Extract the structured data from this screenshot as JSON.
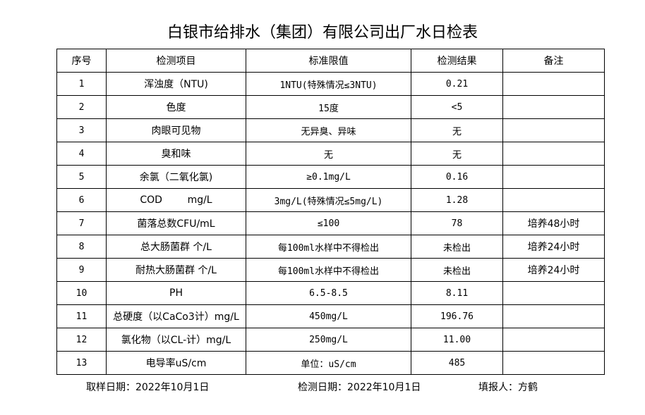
{
  "title": "白银市给排水（集团）有限公司出厂水日检表",
  "headers": [
    "序号",
    "检测项目",
    "标准限值",
    "检测结果",
    "备注"
  ],
  "rows": [
    [
      "1",
      "浑浊度（NTU)",
      "1NTU(特殊情况≤3NTU)",
      "0.21",
      ""
    ],
    [
      "2",
      "色度",
      "15度",
      "<5",
      ""
    ],
    [
      "3",
      "肉眼可见物",
      "无异臭、异味",
      "无",
      ""
    ],
    [
      "4",
      "臭和味",
      "无",
      "无",
      ""
    ],
    [
      "5",
      "余氯（二氧化氯)",
      "≥0.1mg/L",
      "0.16",
      ""
    ],
    [
      "6",
      "COD        mg/L",
      "3mg/L(特殊情况≤5mg/L)",
      "1.28",
      ""
    ],
    [
      "7",
      "菌落总数CFU/mL",
      "≤100",
      "78",
      "培养48小时"
    ],
    [
      "8",
      "总大肠菌群 个/L",
      "每100ml水样中不得检出",
      "未检出",
      "培养24小时"
    ],
    [
      "9",
      "耐热大肠菌群 个/L",
      "每100ml水样中不得检出",
      "未检出",
      "培养24小时"
    ],
    [
      "10",
      "PH",
      "6.5-8.5",
      "8.11",
      ""
    ],
    [
      "11",
      "总硬度（以CaCo3计）mg/L",
      "450mg/L",
      "196.76",
      ""
    ],
    [
      "12",
      "氯化物（以CL-计）mg/L",
      "250mg/L",
      "11.00",
      ""
    ],
    [
      "13",
      "电导率uS/cm",
      "单位：uS/cm",
      "485",
      ""
    ]
  ],
  "footer": {
    "sample_date": "取样日期：2022年10月1日",
    "test_date": "检测日期：2022年10月1日",
    "reporter": "填报人：方鹤"
  }
}
